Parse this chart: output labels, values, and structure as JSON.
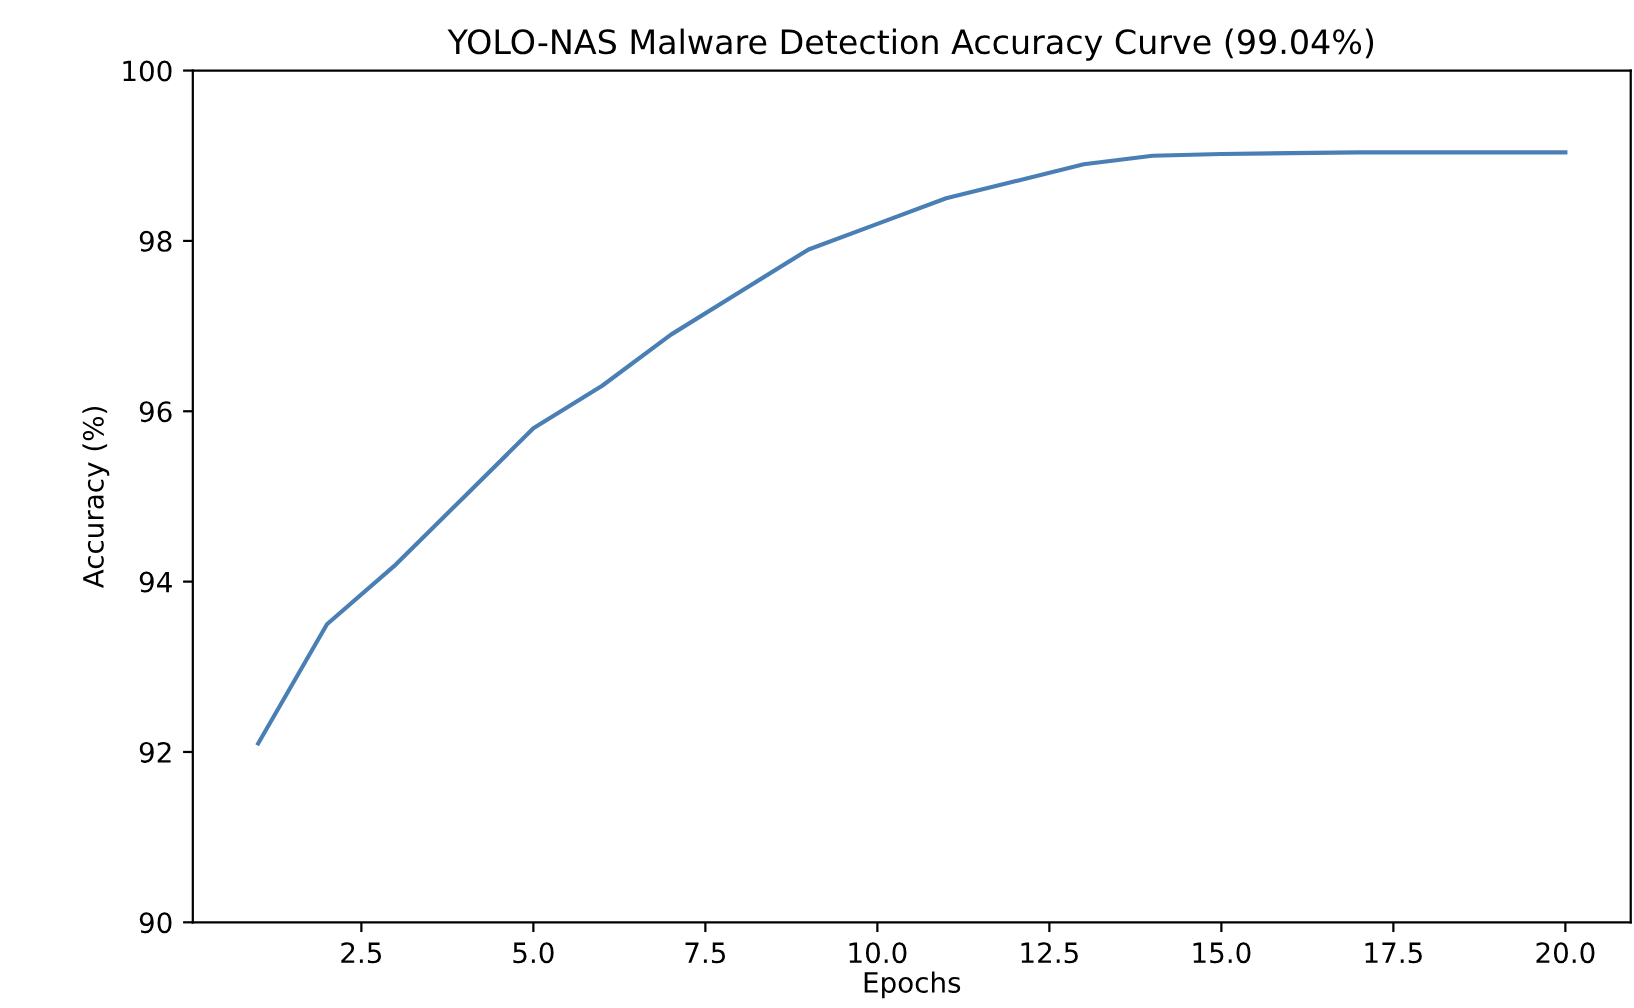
{
  "chart_data": {
    "type": "line",
    "title": "YOLO-NAS Malware Detection Accuracy Curve (99.04%)",
    "xlabel": "Epochs",
    "ylabel": "Accuracy (%)",
    "x": [
      1,
      2,
      3,
      4,
      5,
      6,
      7,
      8,
      9,
      10,
      11,
      12,
      13,
      14,
      15,
      16,
      17,
      18,
      19,
      20
    ],
    "series": [
      {
        "color": "#4a7fb5",
        "values": [
          92.1,
          93.5,
          94.2,
          95.0,
          95.8,
          96.3,
          96.9,
          97.4,
          97.9,
          98.2,
          98.5,
          98.7,
          98.9,
          99.0,
          99.02,
          99.03,
          99.04,
          99.04,
          99.04,
          99.04
        ]
      }
    ],
    "xlim": [
      0.05,
      20.95
    ],
    "ylim": [
      90,
      100
    ],
    "xticks": [
      {
        "value": 2.5,
        "label": "2.5"
      },
      {
        "value": 5,
        "label": "5.0"
      },
      {
        "value": 7.5,
        "label": "7.5"
      },
      {
        "value": 10,
        "label": "10.0"
      },
      {
        "value": 12.5,
        "label": "12.5"
      },
      {
        "value": 15,
        "label": "15.0"
      },
      {
        "value": 17.5,
        "label": "17.5"
      },
      {
        "value": 20,
        "label": "20.0"
      }
    ],
    "yticks": [
      90,
      92,
      94,
      96,
      98,
      100
    ]
  }
}
